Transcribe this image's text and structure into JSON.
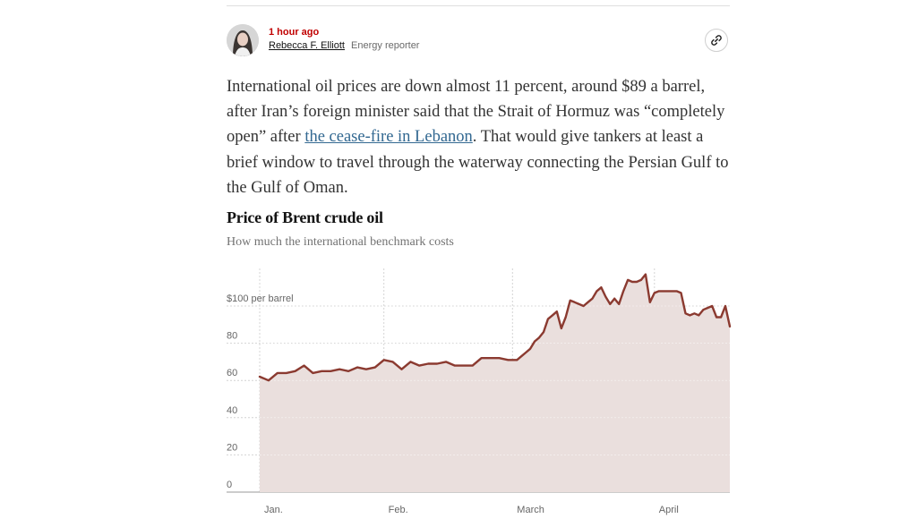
{
  "byline": {
    "timestamp": "1 hour ago",
    "author": "Rebecca F. Elliott",
    "role": "Energy reporter"
  },
  "icons": {
    "avatar": "author-photo",
    "share": "link-icon"
  },
  "article": {
    "text_before_link": "International oil prices are down almost 11 percent, around $89 a barrel, after Iran’s foreign minister said that the Strait of Hormuz was “completely open” after ",
    "link_text": "the cease-fire in Lebanon",
    "text_after_link": ". That would give tankers at least a brief window to travel through the waterway connecting the Persian Gulf to the Gulf of Oman."
  },
  "colors": {
    "line": "#8b3a30",
    "area": "#eadfdd",
    "grid": "#d4d4d4",
    "timestamp": "#c00000",
    "link": "#326891"
  },
  "chart_data": {
    "type": "area",
    "title": "Price of Brent crude oil",
    "subtitle": "How much the international benchmark costs",
    "y_unit_label": "$100 per barrel",
    "ylim": [
      0,
      120
    ],
    "y_ticks": [
      {
        "value": 0,
        "label": "0"
      },
      {
        "value": 20,
        "label": "20"
      },
      {
        "value": 40,
        "label": "40"
      },
      {
        "value": 60,
        "label": "60"
      },
      {
        "value": 80,
        "label": "80"
      },
      {
        "value": 100,
        "label": "$100 per barrel"
      }
    ],
    "xlim": [
      0,
      106
    ],
    "x_ticks": [
      {
        "day": 0,
        "label": "Jan."
      },
      {
        "day": 28,
        "label": "Feb."
      },
      {
        "day": 57,
        "label": "March"
      },
      {
        "day": 89,
        "label": "April"
      }
    ],
    "series": [
      {
        "name": "Brent crude",
        "x": [
          0,
          2,
          4,
          6,
          8,
          10,
          12,
          14,
          16,
          18,
          20,
          22,
          24,
          26,
          28,
          30,
          32,
          34,
          36,
          38,
          40,
          42,
          44,
          46,
          48,
          50,
          52,
          54,
          56,
          58,
          59,
          60,
          61,
          62,
          63,
          64,
          65,
          66,
          67,
          68,
          69,
          70,
          71,
          72,
          73,
          74,
          75,
          76,
          77,
          78,
          79,
          80,
          81,
          82,
          83,
          84,
          85,
          86,
          87,
          88,
          89,
          90,
          91,
          92,
          93,
          94,
          95,
          96,
          97,
          98,
          99,
          100,
          101,
          102,
          103,
          104,
          105,
          106
        ],
        "y": [
          62,
          60,
          64,
          64,
          65,
          68,
          64,
          65,
          65,
          66,
          65,
          67,
          66,
          67,
          71,
          70,
          66,
          70,
          68,
          69,
          69,
          70,
          68,
          68,
          68,
          72,
          72,
          72,
          71,
          71,
          73,
          75,
          77,
          81,
          83,
          86,
          93,
          95,
          97,
          88,
          94,
          103,
          102,
          101,
          100,
          102,
          104,
          108,
          110,
          105,
          101,
          104,
          101,
          108,
          114,
          113,
          113,
          114,
          117,
          102,
          107,
          108,
          108,
          108,
          108,
          108,
          107,
          96,
          95,
          96,
          95,
          98,
          99,
          100,
          94,
          94,
          100,
          89
        ]
      }
    ]
  }
}
